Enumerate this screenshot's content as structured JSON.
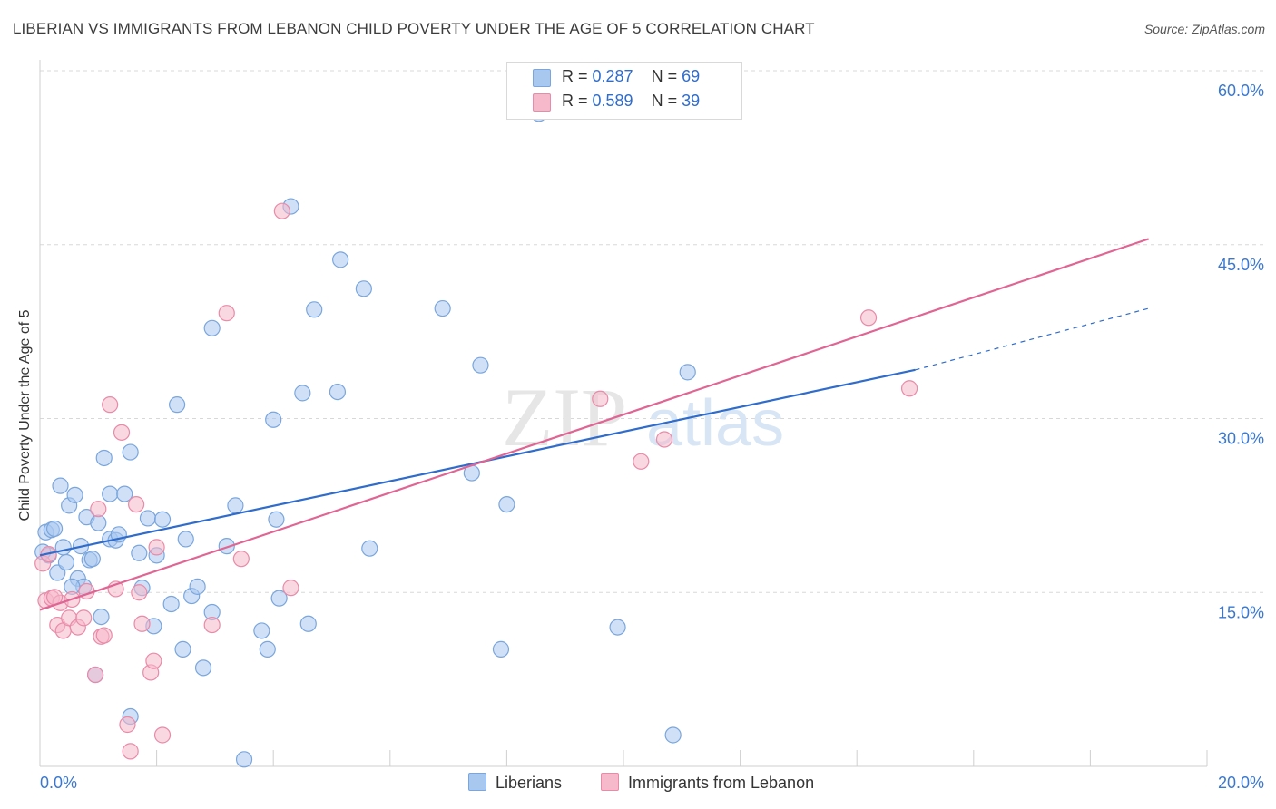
{
  "title": "LIBERIAN VS IMMIGRANTS FROM LEBANON CHILD POVERTY UNDER THE AGE OF 5 CORRELATION CHART",
  "source": "Source: ZipAtlas.com",
  "watermark": {
    "zip": "ZIP",
    "atlas": "atlas"
  },
  "legend_top": {
    "rows": [
      {
        "r_label": "R = ",
        "r_value": "0.287",
        "n_label": "N = ",
        "n_value": "69"
      },
      {
        "r_label": "R = ",
        "r_value": "0.589",
        "n_label": "N = ",
        "n_value": "39"
      }
    ]
  },
  "colors": {
    "blue_fill": "#a9c8f0",
    "blue_stroke": "#7aa6dd",
    "blue_line": "#2f6ccb",
    "pink_fill": "#f6b8cb",
    "pink_stroke": "#e98aa8",
    "pink_line": "#e06592",
    "grid": "#d8d8d8",
    "tick_text": "#3a78d0"
  },
  "chart_data": {
    "type": "scatter",
    "title": "LIBERIAN VS IMMIGRANTS FROM LEBANON CHILD POVERTY UNDER THE AGE OF 5 CORRELATION CHART",
    "xlabel": "",
    "ylabel": "Child Poverty Under the Age of 5",
    "xlim": [
      0,
      20
    ],
    "ylim": [
      0,
      60
    ],
    "x_tick_labels": [
      "0.0%",
      "20.0%"
    ],
    "y_ticks": [
      15,
      30,
      45,
      60
    ],
    "y_tick_labels": [
      "15.0%",
      "30.0%",
      "45.0%",
      "60.0%"
    ],
    "grid": true,
    "legend_position": "bottom",
    "series": [
      {
        "name": "Liberians",
        "r": 0.287,
        "n": 69,
        "trend": {
          "x0": 0,
          "y0": 18.2,
          "x1": 15,
          "y1": 34.2,
          "dash_x1": 19.0,
          "dash_y1": 39.5
        },
        "points": [
          [
            0.1,
            20.2
          ],
          [
            0.15,
            18.2
          ],
          [
            0.2,
            20.4
          ],
          [
            0.25,
            20.5
          ],
          [
            0.3,
            16.7
          ],
          [
            0.35,
            24.2
          ],
          [
            0.4,
            18.9
          ],
          [
            0.45,
            17.6
          ],
          [
            0.5,
            22.5
          ],
          [
            0.6,
            23.4
          ],
          [
            0.65,
            16.2
          ],
          [
            0.7,
            19.0
          ],
          [
            0.75,
            15.5
          ],
          [
            0.8,
            21.5
          ],
          [
            0.85,
            17.8
          ],
          [
            0.9,
            17.9
          ],
          [
            0.95,
            7.9
          ],
          [
            1.0,
            21.0
          ],
          [
            1.05,
            12.9
          ],
          [
            1.1,
            26.6
          ],
          [
            1.2,
            19.6
          ],
          [
            1.2,
            23.5
          ],
          [
            1.3,
            19.5
          ],
          [
            1.35,
            20.0
          ],
          [
            1.45,
            23.5
          ],
          [
            1.55,
            27.1
          ],
          [
            1.7,
            18.4
          ],
          [
            1.75,
            15.4
          ],
          [
            1.85,
            21.4
          ],
          [
            1.95,
            12.1
          ],
          [
            2.0,
            18.2
          ],
          [
            2.1,
            21.3
          ],
          [
            2.25,
            14.0
          ],
          [
            2.35,
            31.2
          ],
          [
            2.45,
            10.1
          ],
          [
            2.5,
            19.6
          ],
          [
            2.6,
            14.7
          ],
          [
            2.8,
            8.5
          ],
          [
            2.95,
            13.3
          ],
          [
            2.95,
            37.8
          ],
          [
            3.2,
            19.0
          ],
          [
            3.35,
            22.5
          ],
          [
            3.8,
            11.7
          ],
          [
            3.9,
            10.1
          ],
          [
            4.0,
            29.9
          ],
          [
            4.05,
            21.3
          ],
          [
            4.1,
            14.5
          ],
          [
            4.3,
            48.3
          ],
          [
            4.5,
            32.2
          ],
          [
            4.6,
            12.3
          ],
          [
            4.7,
            39.4
          ],
          [
            5.1,
            32.3
          ],
          [
            5.15,
            43.7
          ],
          [
            5.55,
            41.2
          ],
          [
            5.65,
            18.8
          ],
          [
            6.9,
            39.5
          ],
          [
            7.4,
            25.3
          ],
          [
            7.55,
            34.6
          ],
          [
            7.9,
            10.1
          ],
          [
            8.0,
            22.6
          ],
          [
            8.55,
            56.3
          ],
          [
            9.9,
            12.0
          ],
          [
            11.1,
            34.0
          ],
          [
            1.55,
            4.3
          ],
          [
            3.5,
            0.6
          ],
          [
            10.85,
            2.7
          ],
          [
            0.05,
            18.5
          ],
          [
            0.55,
            15.5
          ],
          [
            2.7,
            15.5
          ]
        ]
      },
      {
        "name": "Immigrants from Lebanon",
        "r": 0.589,
        "n": 39,
        "trend": {
          "x0": 0,
          "y0": 13.5,
          "x1": 19.0,
          "y1": 45.5
        },
        "points": [
          [
            0.05,
            17.5
          ],
          [
            0.1,
            14.3
          ],
          [
            0.2,
            14.5
          ],
          [
            0.3,
            12.2
          ],
          [
            0.35,
            14.1
          ],
          [
            0.4,
            11.7
          ],
          [
            0.5,
            12.8
          ],
          [
            0.55,
            14.4
          ],
          [
            0.65,
            12.0
          ],
          [
            0.75,
            12.8
          ],
          [
            0.8,
            15.1
          ],
          [
            0.95,
            7.9
          ],
          [
            1.0,
            22.2
          ],
          [
            1.05,
            11.2
          ],
          [
            1.1,
            11.3
          ],
          [
            1.2,
            31.2
          ],
          [
            1.3,
            15.3
          ],
          [
            1.4,
            28.8
          ],
          [
            1.5,
            3.6
          ],
          [
            1.55,
            1.3
          ],
          [
            1.65,
            22.6
          ],
          [
            1.7,
            15.0
          ],
          [
            1.75,
            12.3
          ],
          [
            1.9,
            8.1
          ],
          [
            1.95,
            9.1
          ],
          [
            2.0,
            18.9
          ],
          [
            2.1,
            2.7
          ],
          [
            2.95,
            12.2
          ],
          [
            3.2,
            39.1
          ],
          [
            3.45,
            17.9
          ],
          [
            4.15,
            47.9
          ],
          [
            4.3,
            15.4
          ],
          [
            9.6,
            31.7
          ],
          [
            10.3,
            26.3
          ],
          [
            10.7,
            28.2
          ],
          [
            14.2,
            38.7
          ],
          [
            14.9,
            32.6
          ],
          [
            0.15,
            18.3
          ],
          [
            0.25,
            14.6
          ]
        ]
      }
    ]
  }
}
